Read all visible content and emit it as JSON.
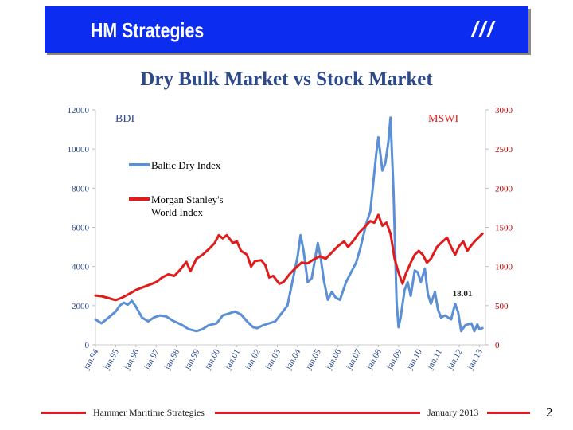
{
  "header": {
    "title": "HM Strategies",
    "mark": "///"
  },
  "chart_data": {
    "type": "line",
    "title": "Dry Bulk Market vs Stock Market",
    "y_left_label": "BDI",
    "y_right_label": "MSWI",
    "ylim_left": [
      0,
      12000
    ],
    "ylim_right": [
      0,
      3000
    ],
    "yticks_left": [
      "0",
      "2000",
      "4000",
      "6000",
      "8000",
      "10000",
      "12000"
    ],
    "yticks_right": [
      "0",
      "500",
      "1000",
      "1500",
      "2000",
      "2500",
      "3000"
    ],
    "xticks": [
      "jan.94",
      "jan.95",
      "jan.96",
      "jan.97",
      "jan.98",
      "jan.99",
      "jan.00",
      "jan.01",
      "jan.02",
      "jan.03",
      "jan.04",
      "jan.05",
      "jan.06",
      "jan.07",
      "jan.08",
      "jan.09",
      "jan.10",
      "jan.11",
      "jan.12",
      "jan.13"
    ],
    "xlim": [
      1994.0,
      2013.3
    ],
    "annotation": {
      "text": "18.01",
      "x": 2012.0
    },
    "legend": [
      "Baltic Dry Index",
      "Morgan Stanley's World Index"
    ],
    "series": [
      {
        "name": "Baltic Dry Index",
        "axis": "left",
        "color": "#5b8fd6",
        "points": [
          [
            1994.0,
            1300
          ],
          [
            1994.3,
            1100
          ],
          [
            1994.6,
            1350
          ],
          [
            1995.0,
            1700
          ],
          [
            1995.2,
            2000
          ],
          [
            1995.4,
            2150
          ],
          [
            1995.6,
            2050
          ],
          [
            1995.8,
            2250
          ],
          [
            1996.0,
            1950
          ],
          [
            1996.3,
            1400
          ],
          [
            1996.6,
            1200
          ],
          [
            1996.9,
            1400
          ],
          [
            1997.2,
            1500
          ],
          [
            1997.5,
            1450
          ],
          [
            1997.8,
            1250
          ],
          [
            1998.0,
            1150
          ],
          [
            1998.3,
            1000
          ],
          [
            1998.6,
            800
          ],
          [
            1999.0,
            700
          ],
          [
            1999.3,
            800
          ],
          [
            1999.6,
            1000
          ],
          [
            2000.0,
            1100
          ],
          [
            2000.3,
            1500
          ],
          [
            2000.6,
            1600
          ],
          [
            2000.9,
            1700
          ],
          [
            2001.2,
            1550
          ],
          [
            2001.5,
            1200
          ],
          [
            2001.8,
            900
          ],
          [
            2002.0,
            850
          ],
          [
            2002.3,
            1000
          ],
          [
            2002.6,
            1100
          ],
          [
            2002.9,
            1200
          ],
          [
            2003.2,
            1600
          ],
          [
            2003.5,
            2000
          ],
          [
            2003.8,
            3500
          ],
          [
            2004.0,
            4500
          ],
          [
            2004.15,
            5600
          ],
          [
            2004.3,
            4800
          ],
          [
            2004.5,
            3200
          ],
          [
            2004.7,
            3400
          ],
          [
            2005.0,
            5200
          ],
          [
            2005.15,
            4400
          ],
          [
            2005.3,
            3300
          ],
          [
            2005.5,
            2300
          ],
          [
            2005.7,
            2700
          ],
          [
            2005.9,
            2400
          ],
          [
            2006.1,
            2300
          ],
          [
            2006.4,
            3200
          ],
          [
            2006.7,
            3800
          ],
          [
            2006.9,
            4200
          ],
          [
            2007.1,
            4900
          ],
          [
            2007.4,
            6200
          ],
          [
            2007.6,
            6800
          ],
          [
            2007.9,
            9800
          ],
          [
            2008.0,
            10600
          ],
          [
            2008.2,
            8900
          ],
          [
            2008.35,
            9300
          ],
          [
            2008.5,
            10400
          ],
          [
            2008.6,
            11600
          ],
          [
            2008.75,
            7800
          ],
          [
            2008.9,
            2200
          ],
          [
            2009.0,
            900
          ],
          [
            2009.1,
            1400
          ],
          [
            2009.3,
            2800
          ],
          [
            2009.45,
            3200
          ],
          [
            2009.6,
            2500
          ],
          [
            2009.8,
            3800
          ],
          [
            2009.95,
            3700
          ],
          [
            2010.1,
            3200
          ],
          [
            2010.3,
            3900
          ],
          [
            2010.45,
            2600
          ],
          [
            2010.6,
            2100
          ],
          [
            2010.8,
            2700
          ],
          [
            2010.95,
            1800
          ],
          [
            2011.1,
            1400
          ],
          [
            2011.3,
            1500
          ],
          [
            2011.6,
            1300
          ],
          [
            2011.8,
            2100
          ],
          [
            2011.95,
            1650
          ],
          [
            2012.1,
            700
          ],
          [
            2012.3,
            1000
          ],
          [
            2012.6,
            1100
          ],
          [
            2012.75,
            700
          ],
          [
            2012.9,
            1050
          ],
          [
            2013.0,
            800
          ],
          [
            2013.15,
            850
          ]
        ]
      },
      {
        "name": "Morgan Stanley's World Index",
        "axis": "right",
        "color": "#e01b1b",
        "points": [
          [
            1994.0,
            630
          ],
          [
            1994.3,
            620
          ],
          [
            1994.6,
            600
          ],
          [
            1995.0,
            570
          ],
          [
            1995.3,
            600
          ],
          [
            1995.6,
            640
          ],
          [
            1996.0,
            700
          ],
          [
            1996.3,
            730
          ],
          [
            1996.6,
            760
          ],
          [
            1997.0,
            800
          ],
          [
            1997.3,
            860
          ],
          [
            1997.6,
            900
          ],
          [
            1997.9,
            880
          ],
          [
            1998.2,
            960
          ],
          [
            1998.5,
            1060
          ],
          [
            1998.7,
            940
          ],
          [
            1999.0,
            1100
          ],
          [
            1999.3,
            1150
          ],
          [
            1999.6,
            1220
          ],
          [
            1999.9,
            1300
          ],
          [
            2000.1,
            1400
          ],
          [
            2000.3,
            1360
          ],
          [
            2000.5,
            1400
          ],
          [
            2000.8,
            1300
          ],
          [
            2001.0,
            1320
          ],
          [
            2001.2,
            1200
          ],
          [
            2001.5,
            1150
          ],
          [
            2001.7,
            1000
          ],
          [
            2001.9,
            1070
          ],
          [
            2002.2,
            1080
          ],
          [
            2002.4,
            1020
          ],
          [
            2002.6,
            860
          ],
          [
            2002.8,
            880
          ],
          [
            2003.1,
            780
          ],
          [
            2003.3,
            800
          ],
          [
            2003.6,
            900
          ],
          [
            2003.9,
            980
          ],
          [
            2004.2,
            1050
          ],
          [
            2004.5,
            1040
          ],
          [
            2004.8,
            1090
          ],
          [
            2005.1,
            1130
          ],
          [
            2005.4,
            1100
          ],
          [
            2005.7,
            1180
          ],
          [
            2006.0,
            1260
          ],
          [
            2006.3,
            1320
          ],
          [
            2006.5,
            1250
          ],
          [
            2006.8,
            1340
          ],
          [
            2007.0,
            1420
          ],
          [
            2007.3,
            1500
          ],
          [
            2007.6,
            1580
          ],
          [
            2007.8,
            1560
          ],
          [
            2008.0,
            1660
          ],
          [
            2008.2,
            1520
          ],
          [
            2008.4,
            1560
          ],
          [
            2008.6,
            1420
          ],
          [
            2008.8,
            1100
          ],
          [
            2009.0,
            920
          ],
          [
            2009.2,
            780
          ],
          [
            2009.35,
            900
          ],
          [
            2009.6,
            1050
          ],
          [
            2009.8,
            1150
          ],
          [
            2010.0,
            1200
          ],
          [
            2010.2,
            1150
          ],
          [
            2010.4,
            1050
          ],
          [
            2010.6,
            1100
          ],
          [
            2010.9,
            1250
          ],
          [
            2011.1,
            1300
          ],
          [
            2011.4,
            1370
          ],
          [
            2011.6,
            1250
          ],
          [
            2011.8,
            1150
          ],
          [
            2012.0,
            1260
          ],
          [
            2012.2,
            1320
          ],
          [
            2012.4,
            1200
          ],
          [
            2012.6,
            1270
          ],
          [
            2012.8,
            1330
          ],
          [
            2013.0,
            1380
          ],
          [
            2013.15,
            1420
          ]
        ]
      }
    ]
  },
  "footer": {
    "left": "Hammer Maritime Strategies",
    "right": "January 2013",
    "page": "2"
  }
}
